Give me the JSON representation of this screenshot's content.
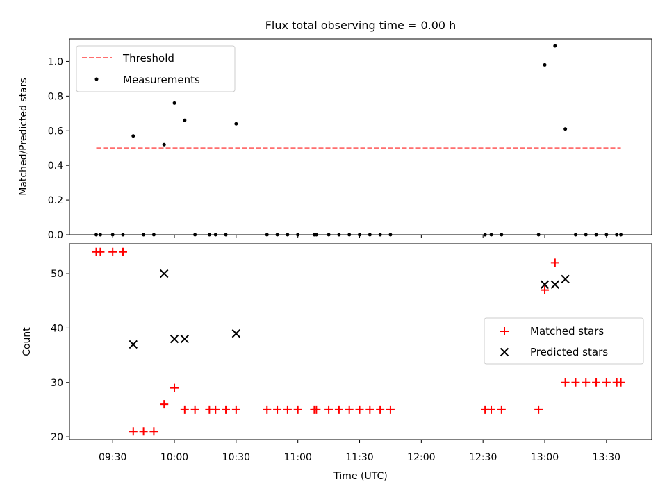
{
  "title": "Flux total observing time = 0.00 h",
  "colors": {
    "threshold": "#ff6e6e",
    "measurement": "#000000",
    "matched": "#ff0000",
    "predicted": "#000000"
  },
  "chart_data": [
    {
      "type": "scatter",
      "panel": "top",
      "title": "Flux total observing time = 0.00 h",
      "xlabel": "",
      "ylabel": "Matched/Predicted stars",
      "ylim": [
        0,
        1.13
      ],
      "yticks": [
        0.0,
        0.2,
        0.4,
        0.6,
        0.8,
        1.0
      ],
      "ytick_labels": [
        "0.0",
        "0.2",
        "0.4",
        "0.6",
        "0.8",
        "1.0"
      ],
      "legend_position": "top-left",
      "threshold": {
        "name": "Threshold",
        "value": 0.5,
        "x_range": [
          "09:22",
          "13:37"
        ]
      },
      "series": [
        {
          "name": "Measurements",
          "x": [
            "09:22",
            "09:24",
            "09:30",
            "09:35",
            "09:40",
            "09:45",
            "09:50",
            "09:55",
            "10:00",
            "10:05",
            "10:10",
            "10:17",
            "10:20",
            "10:25",
            "10:30",
            "10:45",
            "10:50",
            "10:55",
            "11:00",
            "11:08",
            "11:09",
            "11:15",
            "11:20",
            "11:25",
            "11:30",
            "11:35",
            "11:40",
            "11:45",
            "12:31",
            "12:34",
            "12:39",
            "12:57",
            "13:00",
            "13:05",
            "13:10",
            "13:15",
            "13:20",
            "13:25",
            "13:30",
            "13:35",
            "13:37"
          ],
          "y": [
            0,
            0,
            0,
            0,
            0.57,
            0,
            0,
            0.52,
            0.76,
            0.66,
            0,
            0,
            0,
            0,
            0.64,
            0,
            0,
            0,
            0,
            0,
            0,
            0,
            0,
            0,
            0,
            0,
            0,
            0,
            0,
            0,
            0,
            0,
            0.98,
            1.09,
            0.61,
            0,
            0,
            0,
            0,
            0,
            0
          ]
        }
      ]
    },
    {
      "type": "scatter",
      "panel": "bottom",
      "xlabel": "Time (UTC)",
      "ylabel": "Count",
      "ylim": [
        19.5,
        55.5
      ],
      "yticks": [
        20,
        30,
        40,
        50
      ],
      "ytick_labels": [
        "20",
        "30",
        "40",
        "50"
      ],
      "xlim": [
        "09:09",
        "13:52"
      ],
      "xticks": [
        "09:30",
        "10:00",
        "10:30",
        "11:00",
        "11:30",
        "12:00",
        "12:30",
        "13:00",
        "13:30"
      ],
      "legend_position": "center-right",
      "series": [
        {
          "name": "Matched stars",
          "marker": "plus",
          "x": [
            "09:22",
            "09:24",
            "09:30",
            "09:35",
            "09:40",
            "09:45",
            "09:50",
            "09:55",
            "10:00",
            "10:05",
            "10:10",
            "10:17",
            "10:20",
            "10:25",
            "10:30",
            "10:45",
            "10:50",
            "10:55",
            "11:00",
            "11:08",
            "11:09",
            "11:15",
            "11:20",
            "11:25",
            "11:30",
            "11:35",
            "11:40",
            "11:45",
            "12:31",
            "12:34",
            "12:39",
            "12:57",
            "13:00",
            "13:05",
            "13:10",
            "13:15",
            "13:20",
            "13:25",
            "13:30",
            "13:35",
            "13:37"
          ],
          "y": [
            54,
            54,
            54,
            54,
            21,
            21,
            21,
            26,
            29,
            25,
            25,
            25,
            25,
            25,
            25,
            25,
            25,
            25,
            25,
            25,
            25,
            25,
            25,
            25,
            25,
            25,
            25,
            25,
            25,
            25,
            25,
            25,
            47,
            52,
            30,
            30,
            30,
            30,
            30,
            30,
            30
          ]
        },
        {
          "name": "Predicted stars",
          "marker": "x",
          "x": [
            "09:40",
            "09:55",
            "10:00",
            "10:05",
            "10:30",
            "13:00",
            "13:05",
            "13:10"
          ],
          "y": [
            37,
            50,
            38,
            38,
            39,
            48,
            48,
            49
          ]
        }
      ]
    }
  ]
}
